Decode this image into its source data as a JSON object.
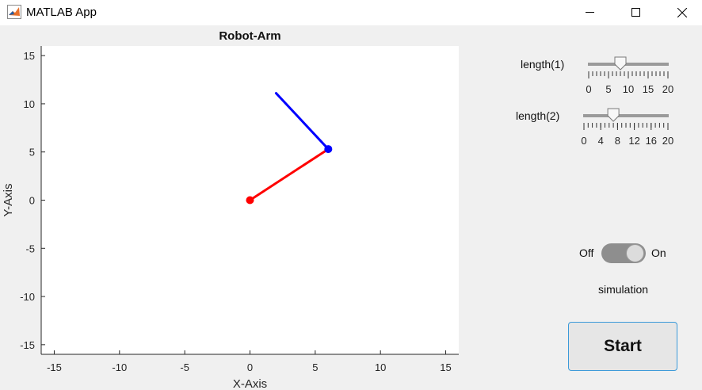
{
  "window": {
    "title": "MATLAB App",
    "controls": [
      "minimize",
      "maximize",
      "close"
    ]
  },
  "chart_data": {
    "type": "line",
    "title": "Robot-Arm",
    "xlabel": "X-Axis",
    "ylabel": "Y-Axis",
    "xlim": [
      -16,
      16
    ],
    "ylim": [
      -16,
      16
    ],
    "x_ticks": [
      -15,
      -10,
      -5,
      0,
      5,
      10,
      15
    ],
    "y_ticks": [
      15,
      10,
      5,
      0,
      -5,
      -10,
      -15
    ],
    "grid": false,
    "series": [
      {
        "color": "#ff0000",
        "x": [
          0,
          6
        ],
        "y": [
          0,
          5.3
        ]
      },
      {
        "color": "#0000ff",
        "x": [
          6,
          2
        ],
        "y": [
          5.3,
          11.1
        ]
      }
    ]
  },
  "controls": {
    "slider1": {
      "label": "length(1)",
      "min": 0,
      "max": 20,
      "value": 8,
      "major_tick_labels": [
        "0",
        "5",
        "10",
        "15",
        "20"
      ],
      "minor_tick_count": 21
    },
    "slider2": {
      "label": "length(2)",
      "min": 0,
      "max": 20,
      "value": 7,
      "major_tick_labels": [
        "0",
        "4",
        "8",
        "12",
        "16",
        "20"
      ],
      "minor_tick_count": 21
    },
    "toggle": {
      "off_label": "Off",
      "on_label": "On",
      "state": "On",
      "caption": "simulation"
    },
    "start_button": {
      "label": "Start"
    }
  }
}
